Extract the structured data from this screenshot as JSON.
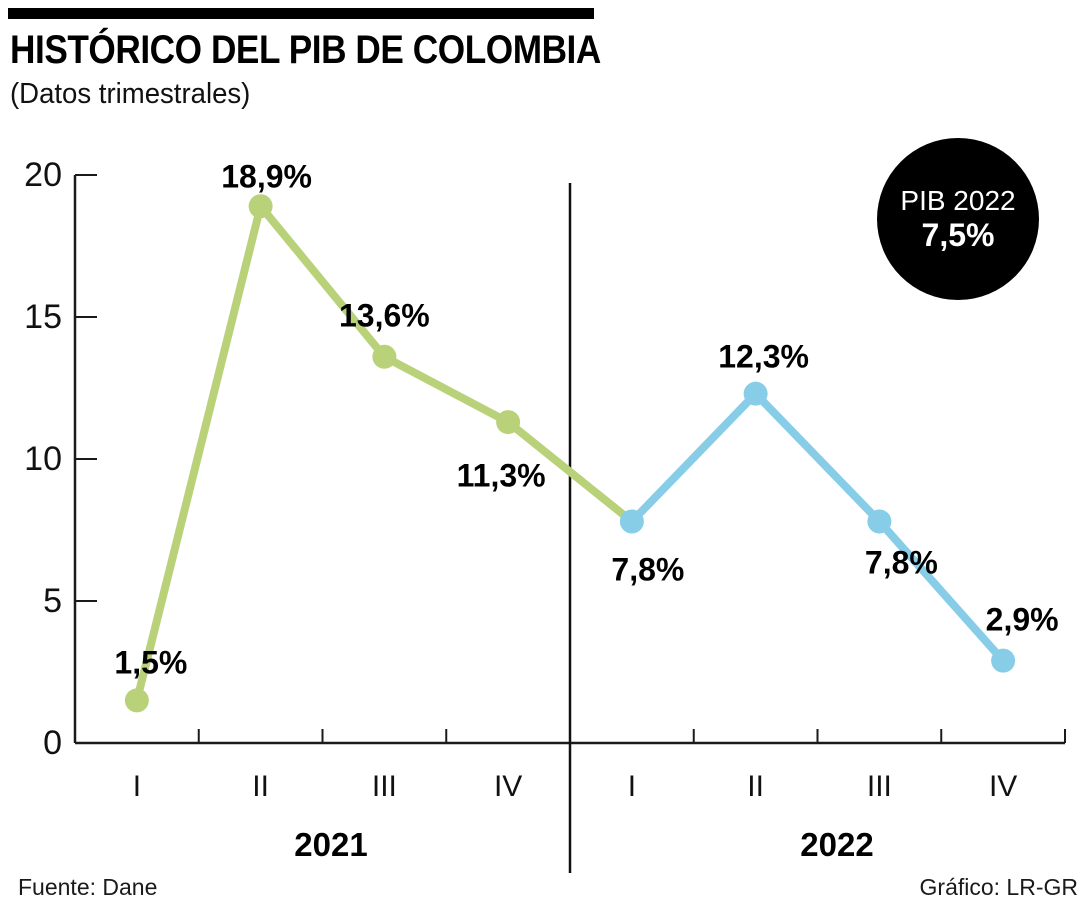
{
  "header": {
    "title": "HISTÓRICO DEL PIB DE COLOMBIA",
    "subtitle": "(Datos trimestrales)"
  },
  "badge": {
    "line1": "PIB 2022",
    "line2": "7,5%"
  },
  "footer": {
    "source": "Fuente: Dane",
    "credit": "Gráfico: LR-GR"
  },
  "colors": {
    "series_2021": "#b9d27a",
    "series_2022": "#87cde8",
    "axis": "#1a1a1a",
    "badge_bg": "#000000",
    "badge_text": "#ffffff"
  },
  "chart_data": {
    "type": "line",
    "title": "HISTÓRICO DEL PIB DE COLOMBIA",
    "subtitle": "(Datos trimestrales)",
    "xlabel": "",
    "ylabel": "",
    "ylim": [
      0,
      20
    ],
    "y_ticks": [
      20,
      15,
      10,
      5,
      0
    ],
    "grid": false,
    "legend": "none",
    "x_groups": [
      {
        "year": "2021",
        "quarters": [
          "I",
          "II",
          "III",
          "IV"
        ]
      },
      {
        "year": "2022",
        "quarters": [
          "I",
          "II",
          "III",
          "IV"
        ]
      }
    ],
    "series": [
      {
        "name": "2021",
        "color": "#b9d27a",
        "values": [
          1.5,
          18.9,
          13.6,
          11.3
        ],
        "labels": [
          "1,5%",
          "18,9%",
          "13,6%",
          "11,3%"
        ]
      },
      {
        "name": "2022",
        "color": "#87cde8",
        "values": [
          7.8,
          12.3,
          7.8,
          2.9
        ],
        "labels": [
          "7,8%",
          "12,3%",
          "7,8%",
          "2,9%"
        ]
      }
    ],
    "annotation": {
      "text": "PIB 2022 7,5%"
    }
  }
}
